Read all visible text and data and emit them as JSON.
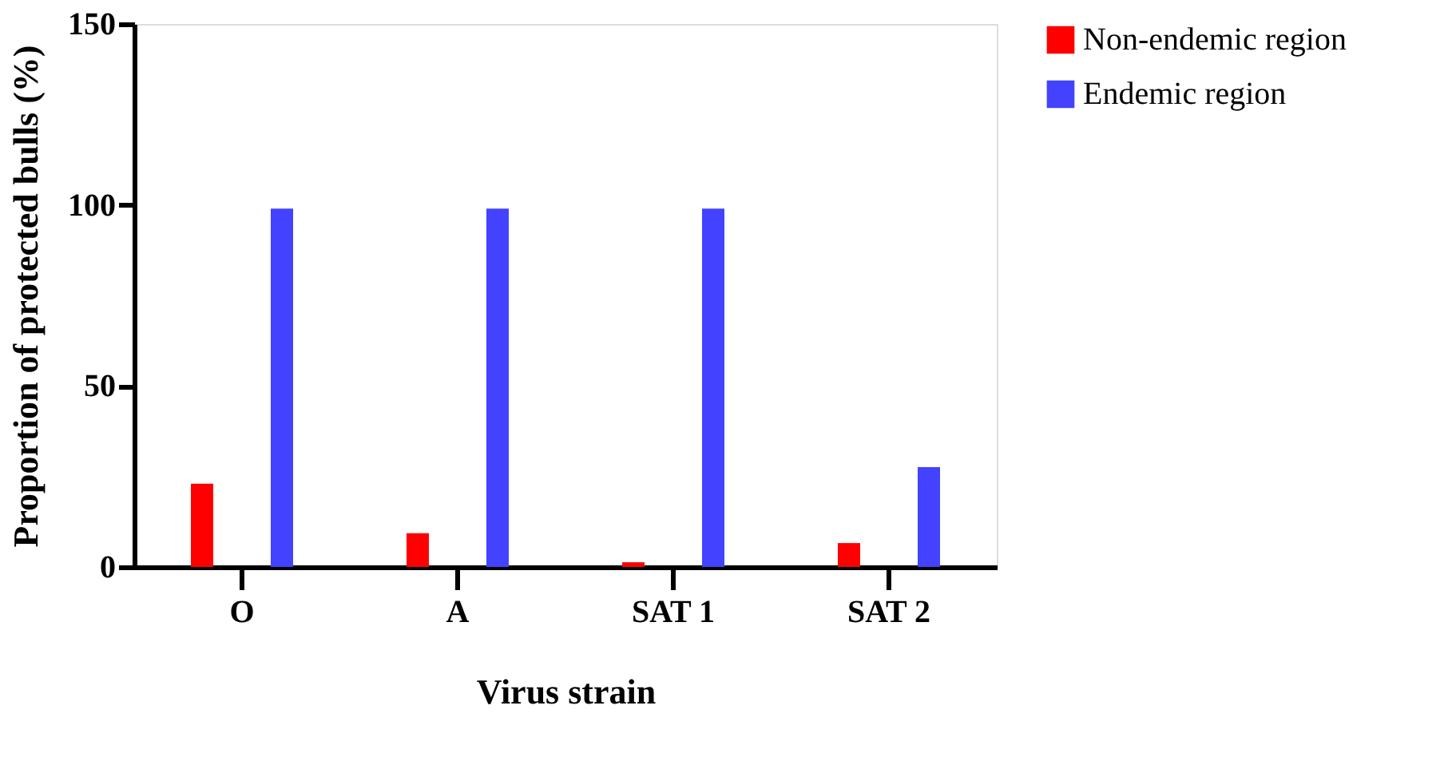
{
  "chart_data": {
    "type": "bar",
    "xlabel": "Virus strain",
    "ylabel": "Proportion of  protected bulls (%)",
    "categories": [
      "O",
      "A",
      "SAT 1",
      "SAT 2"
    ],
    "series": [
      {
        "name": "Non-endemic region",
        "color": "#ff0000",
        "values": [
          23,
          9.3,
          1.3,
          6.6
        ]
      },
      {
        "name": "Endemic region",
        "color": "#4242ff",
        "values": [
          99,
          99,
          99,
          27.6
        ]
      }
    ],
    "ylim": [
      0,
      150
    ],
    "yticks": [
      0,
      50,
      100,
      150
    ],
    "grid": false,
    "legend": "top right"
  }
}
